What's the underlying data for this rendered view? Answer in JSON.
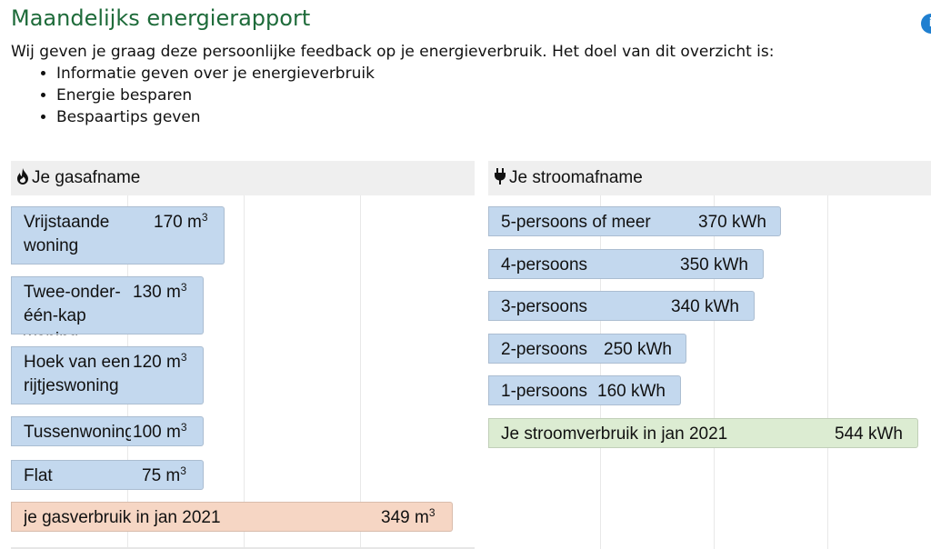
{
  "page": {
    "title": "Maandelijks energierapport",
    "info_icon": "info-icon",
    "intro": "Wij geven je graag deze persoonlijke feedback op je energieverbruik. Het doel van dit overzicht is:",
    "bullets": [
      "Informatie geven over je energieverbruik",
      "Energie besparen",
      "Bespaartips geven"
    ]
  },
  "gas": {
    "heading": "Je gasafname",
    "icon": "flame-icon",
    "unit": "m",
    "unit_sup": "3",
    "colors": {
      "reference": "#c3d8ee",
      "own": "#f6d6c4"
    },
    "bars": [
      {
        "label": "Vrijstaande woning",
        "value": "170"
      },
      {
        "label": "Twee-onder-één-kap woning",
        "value": "130"
      },
      {
        "label": "Hoek van een rijtjeswoning",
        "value": "120"
      },
      {
        "label": "Tussenwoning",
        "value": "100"
      },
      {
        "label": "Flat",
        "value": "75"
      },
      {
        "label": "je gasverbruik in jan 2021",
        "value": "349"
      }
    ]
  },
  "power": {
    "heading": "Je stroomafname",
    "icon": "plug-icon",
    "unit": "kWh",
    "colors": {
      "reference": "#c3d8ee",
      "own": "#dcecd2"
    },
    "bars": [
      {
        "label": "5-persoons of meer",
        "value": "370"
      },
      {
        "label": "4-persoons",
        "value": "350"
      },
      {
        "label": "3-persoons",
        "value": "340"
      },
      {
        "label": "2-persoons",
        "value": "250"
      },
      {
        "label": "1-persoons",
        "value": "160"
      },
      {
        "label": "Je stroomverbruik in jan 2021",
        "value": "544"
      }
    ]
  }
}
